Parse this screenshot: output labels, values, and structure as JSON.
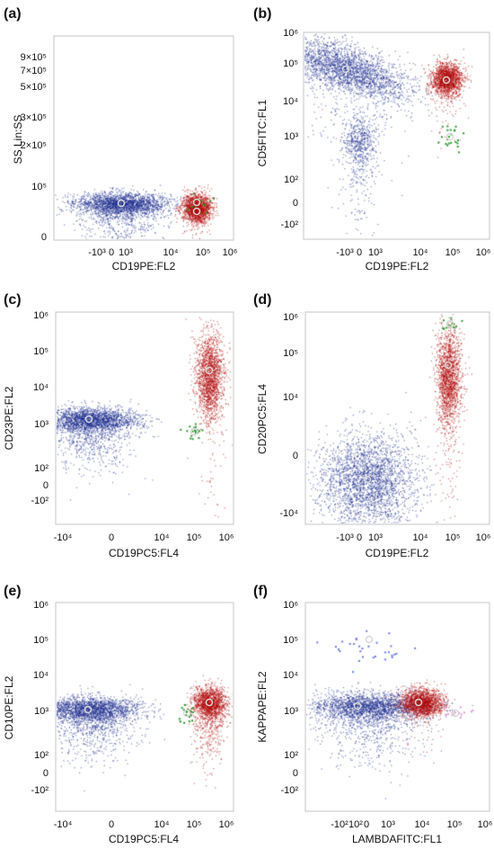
{
  "figure": {
    "panels": [
      {
        "label": "(a)",
        "xlabel": "CD19PE:FL2",
        "ylabel": "SS Lin:SS"
      },
      {
        "label": "(b)",
        "xlabel": "CD19PE:FL2",
        "ylabel": "CD5FITC:FL1"
      },
      {
        "label": "(c)",
        "xlabel": "CD19PC5:FL4",
        "ylabel": "CD23PE:FL2"
      },
      {
        "label": "(d)",
        "xlabel": "CD19PE:FL2",
        "ylabel": "CD20PC5:FL4"
      },
      {
        "label": "(e)",
        "xlabel": "CD19PC5:FL4",
        "ylabel": "CD10PE:FL2"
      },
      {
        "label": "(f)",
        "xlabel": "LAMBDAFITC:FL1",
        "ylabel": "KAPPAPE:FL2"
      }
    ]
  },
  "colors": {
    "population_1": "#1a2a8c",
    "population_2": "#b00a0a",
    "population_3": "#2a9a2a",
    "population_4": "#6a7ae6",
    "population_5": "#e59ad8"
  },
  "chart_data": [
    {
      "type": "scatter",
      "title": "",
      "xlabel": "CD19PE:FL2",
      "ylabel": "SS Lin:SS",
      "x_axis": {
        "scale": "biexponential",
        "tick_labels": [
          "-10³",
          "0",
          "10³",
          "10⁴",
          "10⁵",
          "10⁶"
        ]
      },
      "y_axis": {
        "scale": "linear",
        "tick_labels": [
          "0",
          "10⁵",
          "2×10⁵",
          "3×10⁵",
          "5×10⁵",
          "7×10⁵",
          "9×10⁵"
        ],
        "ylim": [
          0,
          1000000
        ]
      },
      "series": [
        {
          "color": "#1a2a8c",
          "center": {
            "x": 700,
            "y": 65000
          },
          "count_approx": 2600
        },
        {
          "color": "#b00a0a",
          "center": {
            "x": 75000,
            "y": 50000
          },
          "count_approx": 1700
        },
        {
          "color": "#2a9a2a",
          "center": {
            "x": 80000,
            "y": 65000
          },
          "count_approx": 12
        }
      ]
    },
    {
      "type": "scatter",
      "title": "",
      "xlabel": "CD19PE:FL2",
      "ylabel": "CD5FITC:FL1",
      "x_axis": {
        "scale": "biexponential",
        "tick_labels": [
          "-10³",
          "0",
          "10³",
          "10⁴",
          "10⁵",
          "10⁶"
        ]
      },
      "y_axis": {
        "scale": "biexponential",
        "tick_labels": [
          "-10²",
          "0",
          "10²",
          "10³",
          "10⁴",
          "10⁵",
          "10⁶"
        ]
      },
      "series": [
        {
          "color": "#1a2a8c",
          "center": {
            "x": 700,
            "y": 60000
          },
          "count_approx": 2700
        },
        {
          "color": "#1a2a8c",
          "center": {
            "x": 800,
            "y": 900
          },
          "count_approx": 650
        },
        {
          "color": "#b00a0a",
          "center": {
            "x": 75000,
            "y": 30000
          },
          "count_approx": 1700
        },
        {
          "color": "#2a9a2a",
          "center": {
            "x": 80000,
            "y": 1000
          },
          "count_approx": 22
        }
      ]
    },
    {
      "type": "scatter",
      "title": "",
      "xlabel": "CD19PC5:FL4",
      "ylabel": "CD23PE:FL2",
      "x_axis": {
        "scale": "biexponential",
        "tick_labels": [
          "-10⁴",
          "0",
          "10⁴",
          "10⁵",
          "10⁶"
        ]
      },
      "y_axis": {
        "scale": "biexponential",
        "tick_labels": [
          "-10²",
          "0",
          "10²",
          "10³",
          "10⁴",
          "10⁵",
          "10⁶"
        ]
      },
      "series": [
        {
          "color": "#1a2a8c",
          "center": {
            "x": -5000,
            "y": 1300
          },
          "count_approx": 2700
        },
        {
          "color": "#b00a0a",
          "center": {
            "x": 200000,
            "y": 30000
          },
          "count_approx": 1800
        },
        {
          "color": "#2a9a2a",
          "center": {
            "x": 90000,
            "y": 700
          },
          "count_approx": 20
        }
      ]
    },
    {
      "type": "scatter",
      "title": "",
      "xlabel": "CD19PE:FL2",
      "ylabel": "CD20PC5:FL4",
      "x_axis": {
        "scale": "biexponential",
        "tick_labels": [
          "-10³",
          "0",
          "10³",
          "10⁴",
          "10⁵",
          "10⁶"
        ]
      },
      "y_axis": {
        "scale": "biexponential",
        "tick_labels": [
          "-10⁴",
          "0",
          "10⁴",
          "10⁵",
          "10⁶"
        ]
      },
      "series": [
        {
          "color": "#1a2a8c",
          "center": {
            "x": 700,
            "y": -2500
          },
          "count_approx": 2800
        },
        {
          "color": "#b00a0a",
          "center": {
            "x": 75000,
            "y": 50000
          },
          "count_approx": 1800
        },
        {
          "color": "#2a9a2a",
          "center": {
            "x": 80000,
            "y": 600000
          },
          "count_approx": 14
        }
      ]
    },
    {
      "type": "scatter",
      "title": "",
      "xlabel": "CD19PC5:FL4",
      "ylabel": "CD10PE:FL2",
      "x_axis": {
        "scale": "biexponential",
        "tick_labels": [
          "-10⁴",
          "0",
          "10⁴",
          "10⁵",
          "10⁶"
        ]
      },
      "y_axis": {
        "scale": "biexponential",
        "tick_labels": [
          "-10²",
          "0",
          "10²",
          "10³",
          "10⁴",
          "10⁵",
          "10⁶"
        ]
      },
      "series": [
        {
          "color": "#1a2a8c",
          "center": {
            "x": -5000,
            "y": 1200
          },
          "count_approx": 2700
        },
        {
          "color": "#b00a0a",
          "center": {
            "x": 200000,
            "y": 1600
          },
          "count_approx": 1800
        },
        {
          "color": "#2a9a2a",
          "center": {
            "x": 50000,
            "y": 1000
          },
          "count_approx": 18
        }
      ]
    },
    {
      "type": "scatter",
      "title": "",
      "xlabel": "LAMBDAFITC:FL1",
      "ylabel": "KAPPAPE:FL2",
      "x_axis": {
        "scale": "biexponential",
        "tick_labels": [
          "-10²",
          "10²",
          "0",
          "10³",
          "10⁴",
          "10⁵",
          "10⁶"
        ]
      },
      "y_axis": {
        "scale": "biexponential",
        "tick_labels": [
          "-10²",
          "0",
          "10²",
          "10³",
          "10⁴",
          "10⁵",
          "10⁶"
        ]
      },
      "series": [
        {
          "color": "#1a2a8c",
          "center": {
            "x": 700,
            "y": 1400
          },
          "count_approx": 2700
        },
        {
          "color": "#b00a0a",
          "center": {
            "x": 6000,
            "y": 1600
          },
          "count_approx": 1800
        },
        {
          "color": "#6a7ae6",
          "center": {
            "x": 300,
            "y": 100000
          },
          "count_approx": 30
        },
        {
          "color": "#e59ad8",
          "center": {
            "x": 100000,
            "y": 1000
          },
          "count_approx": 15
        }
      ]
    }
  ]
}
